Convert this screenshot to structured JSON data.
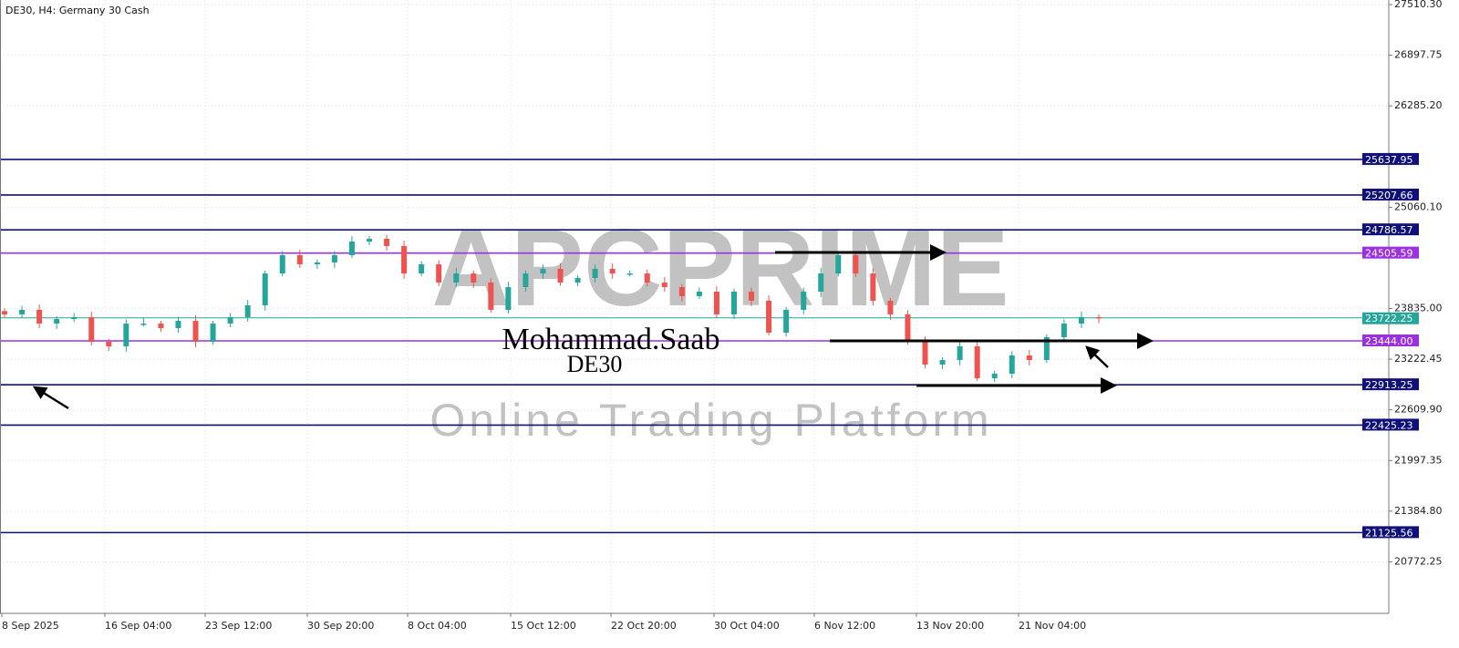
{
  "header": {
    "title": "DE30, H4:  Germany 30 Cash"
  },
  "watermark": {
    "brand": "APCPRIME",
    "tagline": "Online Trading Platform"
  },
  "annotation": {
    "author": "Mohammad.Saab",
    "symbol": "DE30"
  },
  "colors": {
    "bull": "#26a69a",
    "bear": "#ef5350",
    "level": "#10107a",
    "pivot": "#9b30e0",
    "current": "#26a69a"
  },
  "chart_data": {
    "type": "candlestick",
    "title": "DE30, H4:  Germany 30 Cash",
    "ylim": [
      20500,
      27510.3
    ],
    "y_ticks": [
      "27510.30",
      "26897.75",
      "26285.20",
      "25060.10",
      "23835.00",
      "23222.45",
      "22609.90",
      "21997.35",
      "21384.80",
      "20772.25"
    ],
    "x_ticks": [
      "8 Sep 2025",
      "16 Sep 04:00",
      "23 Sep 12:00",
      "30 Sep 20:00",
      "8 Oct 04:00",
      "15 Oct 12:00",
      "22 Oct 20:00",
      "30 Oct 04:00",
      "6 Nov 12:00",
      "13 Nov 20:00",
      "21 Nov 04:00"
    ],
    "grid": true,
    "closes": [
      23764,
      23819,
      23653,
      23708,
      23731,
      23433,
      23378,
      23653,
      23653,
      23598,
      23686,
      23433,
      23653,
      23731,
      23874,
      24259,
      24480,
      24370,
      24392,
      24480,
      24645,
      24678,
      24590,
      24259,
      24370,
      24149,
      24259,
      24149,
      23819,
      24094,
      24259,
      24315,
      24149,
      24204,
      24315,
      24259,
      24259,
      24149,
      24094,
      23984,
      24039,
      23764,
      24039,
      23929,
      23543,
      23819,
      24039,
      24259,
      24480,
      24259,
      23929,
      23764,
      23433,
      23157,
      23212,
      23378,
      22992,
      23047,
      23268,
      23212,
      23488,
      23653,
      23731,
      23722
    ],
    "current_price": "23722.25",
    "levels": [
      {
        "price": "25637.95",
        "kind": "level"
      },
      {
        "price": "25207.66",
        "kind": "level"
      },
      {
        "price": "24786.57",
        "kind": "level"
      },
      {
        "price": "24505.59",
        "kind": "pivot"
      },
      {
        "price": "23444.00",
        "kind": "pivot"
      },
      {
        "price": "22913.25",
        "kind": "level"
      },
      {
        "price": "22425.23",
        "kind": "level"
      },
      {
        "price": "21125.56",
        "kind": "level"
      }
    ]
  }
}
